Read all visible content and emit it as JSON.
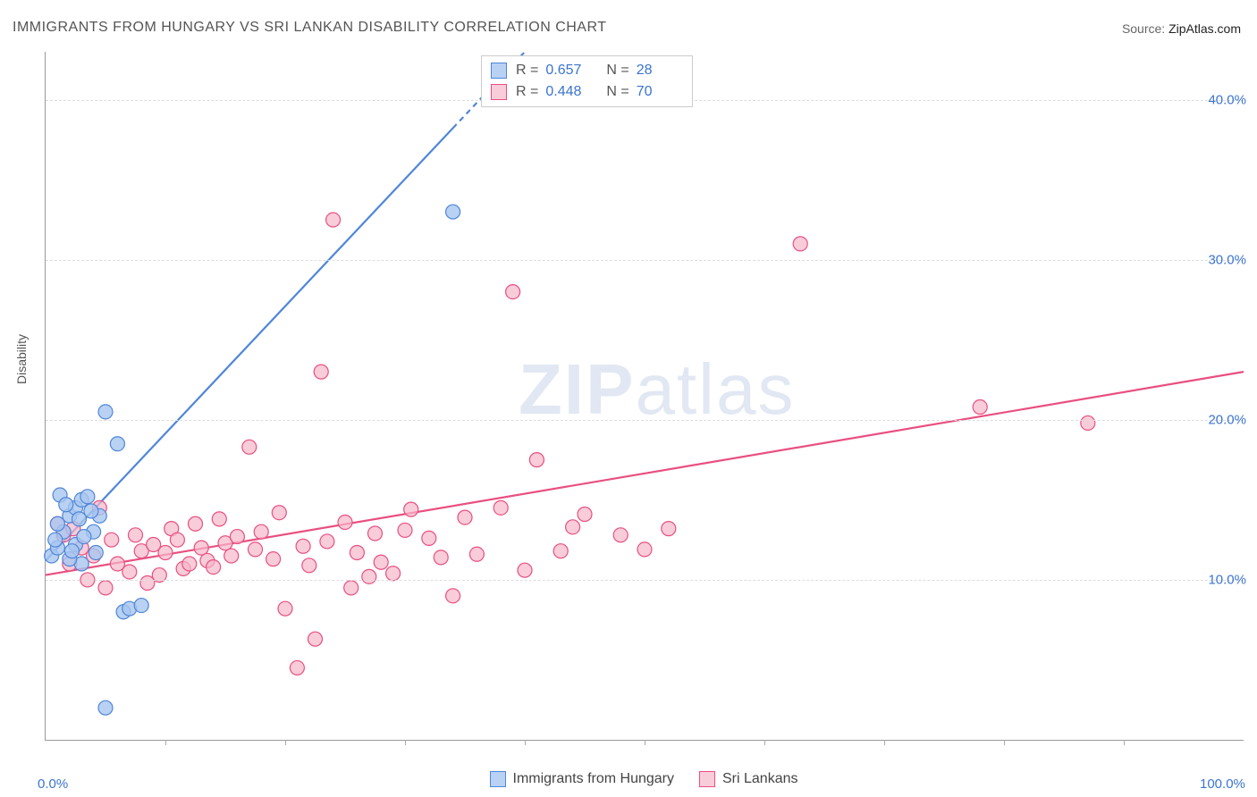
{
  "title": "IMMIGRANTS FROM HUNGARY VS SRI LANKAN DISABILITY CORRELATION CHART",
  "source": {
    "label": "Source:",
    "value": "ZipAtlas.com"
  },
  "ylabel": "Disability",
  "watermark": {
    "text_a": "ZIP",
    "text_b": "atlas"
  },
  "chart": {
    "type": "scatter",
    "background_color": "#ffffff",
    "grid_color": "#dddddd",
    "axis_color": "#999999",
    "tick_label_color": "#3b74d0",
    "xlim": [
      0,
      100
    ],
    "ylim": [
      0,
      43
    ],
    "x_ticks": [
      0,
      100
    ],
    "x_tick_labels": [
      "0.0%",
      "100.0%"
    ],
    "x_minor_ticks": [
      10,
      20,
      30,
      40,
      50,
      60,
      70,
      80,
      90
    ],
    "y_ticks": [
      10,
      20,
      30,
      40
    ],
    "y_tick_labels": [
      "10.0%",
      "20.0%",
      "30.0%",
      "40.0%"
    ],
    "marker_radius": 8,
    "marker_stroke_width": 1.2,
    "trend_line_width": 2.2,
    "series": [
      {
        "name": "Immigrants from Hungary",
        "color_fill": "#a7c5efcc",
        "color_stroke": "#4f86d9",
        "R": "0.657",
        "N": "28",
        "trend": {
          "x1": 0,
          "y1": 11.2,
          "x2": 40,
          "y2": 43,
          "dash_after_x": 34
        },
        "points": [
          [
            0.5,
            11.5
          ],
          [
            1,
            12
          ],
          [
            1.5,
            13
          ],
          [
            1,
            13.5
          ],
          [
            2,
            14
          ],
          [
            2.5,
            14.5
          ],
          [
            3,
            15
          ],
          [
            3.5,
            15.2
          ],
          [
            4,
            13
          ],
          [
            4.5,
            14
          ],
          [
            5,
            20.5
          ],
          [
            6,
            18.5
          ],
          [
            3,
            11
          ],
          [
            6.5,
            8
          ],
          [
            7,
            8.2
          ],
          [
            8,
            8.4
          ],
          [
            5,
            2
          ],
          [
            2,
            11.3
          ],
          [
            2.5,
            12.2
          ],
          [
            0.8,
            12.5
          ],
          [
            1.2,
            15.3
          ],
          [
            1.7,
            14.7
          ],
          [
            2.2,
            11.8
          ],
          [
            3.2,
            12.7
          ],
          [
            3.8,
            14.3
          ],
          [
            4.2,
            11.7
          ],
          [
            34,
            33
          ],
          [
            2.8,
            13.8
          ]
        ]
      },
      {
        "name": "Sri Lankans",
        "color_fill": "#f6b7c9b3",
        "color_stroke": "#e94f80",
        "R": "0.448",
        "N": "70",
        "trend": {
          "x1": 0,
          "y1": 10.3,
          "x2": 100,
          "y2": 23
        },
        "points": [
          [
            1,
            13.5
          ],
          [
            2,
            11
          ],
          [
            3,
            12
          ],
          [
            3.5,
            10
          ],
          [
            4,
            11.5
          ],
          [
            5,
            9.5
          ],
          [
            5.5,
            12.5
          ],
          [
            6,
            11
          ],
          [
            7,
            10.5
          ],
          [
            7.5,
            12.8
          ],
          [
            8,
            11.8
          ],
          [
            8.5,
            9.8
          ],
          [
            9,
            12.2
          ],
          [
            9.5,
            10.3
          ],
          [
            10,
            11.7
          ],
          [
            10.5,
            13.2
          ],
          [
            11,
            12.5
          ],
          [
            11.5,
            10.7
          ],
          [
            12,
            11
          ],
          [
            12.5,
            13.5
          ],
          [
            13,
            12
          ],
          [
            13.5,
            11.2
          ],
          [
            14,
            10.8
          ],
          [
            14.5,
            13.8
          ],
          [
            15,
            12.3
          ],
          [
            15.5,
            11.5
          ],
          [
            16,
            12.7
          ],
          [
            17,
            18.3
          ],
          [
            17.5,
            11.9
          ],
          [
            18,
            13
          ],
          [
            19,
            11.3
          ],
          [
            19.5,
            14.2
          ],
          [
            20,
            8.2
          ],
          [
            21,
            4.5
          ],
          [
            21.5,
            12.1
          ],
          [
            22,
            10.9
          ],
          [
            22.5,
            6.3
          ],
          [
            23,
            23
          ],
          [
            23.5,
            12.4
          ],
          [
            24,
            32.5
          ],
          [
            25,
            13.6
          ],
          [
            25.5,
            9.5
          ],
          [
            26,
            11.7
          ],
          [
            27,
            10.2
          ],
          [
            27.5,
            12.9
          ],
          [
            28,
            11.1
          ],
          [
            29,
            10.4
          ],
          [
            30,
            13.1
          ],
          [
            30.5,
            14.4
          ],
          [
            32,
            12.6
          ],
          [
            33,
            11.4
          ],
          [
            34,
            9
          ],
          [
            35,
            13.9
          ],
          [
            36,
            11.6
          ],
          [
            38,
            14.5
          ],
          [
            39,
            28
          ],
          [
            40,
            10.6
          ],
          [
            41,
            17.5
          ],
          [
            43,
            11.8
          ],
          [
            44,
            13.3
          ],
          [
            45,
            14.1
          ],
          [
            48,
            12.8
          ],
          [
            50,
            11.9
          ],
          [
            52,
            13.2
          ],
          [
            63,
            31
          ],
          [
            78,
            20.8
          ],
          [
            87,
            19.8
          ],
          [
            1.5,
            12.8
          ],
          [
            2.3,
            13.2
          ],
          [
            4.5,
            14.5
          ]
        ]
      }
    ]
  },
  "legend_top_labels": {
    "R": "R =",
    "N": "N ="
  }
}
